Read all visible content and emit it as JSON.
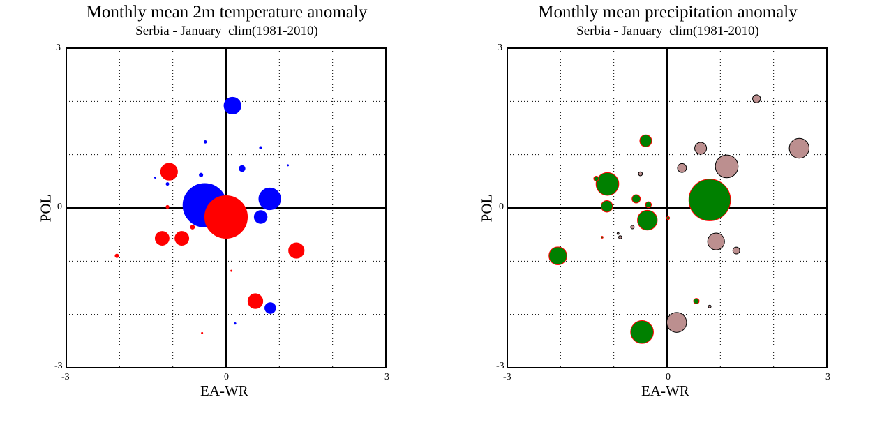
{
  "chart_data": [
    {
      "type": "scatter",
      "title": "Monthly mean 2m temperature anomaly",
      "subtitle": "Serbia - January  clim(1981-2010)",
      "xlabel": "EA-WR",
      "ylabel": "POL",
      "xlim": [
        -3,
        3
      ],
      "ylim": [
        -3,
        3
      ],
      "x_ticks": [
        "-3",
        "0",
        "3"
      ],
      "y_ticks": [
        "3",
        "0",
        "-3"
      ],
      "grid": true,
      "note": "bubble size = anomaly magnitude; blue = negative, red = positive",
      "series": [
        {
          "color": "#0000ff",
          "points": [
            {
              "x": 0.12,
              "y": 1.92,
              "size": 0.85
            },
            {
              "x": -0.4,
              "y": 0.05,
              "size": 2.2
            },
            {
              "x": 0.82,
              "y": 0.17,
              "size": 1.1
            },
            {
              "x": 0.65,
              "y": -0.17,
              "size": 0.65
            },
            {
              "x": 0.83,
              "y": -1.88,
              "size": 0.55
            },
            {
              "x": 0.3,
              "y": 0.74,
              "size": 0.3
            },
            {
              "x": -0.47,
              "y": 0.62,
              "size": 0.18
            },
            {
              "x": -0.39,
              "y": 1.24,
              "size": 0.13
            },
            {
              "x": 0.65,
              "y": 1.13,
              "size": 0.12
            },
            {
              "x": -1.1,
              "y": 0.45,
              "size": 0.14
            },
            {
              "x": 0.17,
              "y": -2.17,
              "size": 0.08
            },
            {
              "x": 1.16,
              "y": 0.8,
              "size": 0.05
            },
            {
              "x": -1.33,
              "y": 0.57,
              "size": 0.06
            },
            {
              "x": 0.72,
              "y": 0.15,
              "size": 0.08
            }
          ]
        },
        {
          "color": "#ff0000",
          "points": [
            {
              "x": 0.0,
              "y": -0.17,
              "size": 2.15
            },
            {
              "x": -1.07,
              "y": 0.68,
              "size": 0.85
            },
            {
              "x": -1.2,
              "y": -0.57,
              "size": 0.7
            },
            {
              "x": -0.83,
              "y": -0.57,
              "size": 0.7
            },
            {
              "x": 1.32,
              "y": -0.8,
              "size": 0.78
            },
            {
              "x": 0.55,
              "y": -1.75,
              "size": 0.75
            },
            {
              "x": -0.63,
              "y": -0.36,
              "size": 0.2
            },
            {
              "x": -2.05,
              "y": -0.9,
              "size": 0.18
            },
            {
              "x": -1.1,
              "y": 0.02,
              "size": 0.15
            },
            {
              "x": 0.1,
              "y": -1.18,
              "size": 0.04
            },
            {
              "x": -0.45,
              "y": -2.35,
              "size": 0.03
            }
          ]
        }
      ]
    },
    {
      "type": "scatter",
      "title": "Monthly mean precipitation anomaly",
      "subtitle": "Serbia - January  clim(1981-2010)",
      "xlabel": "EA-WR",
      "ylabel": "POL",
      "xlim": [
        -3,
        3
      ],
      "ylim": [
        -3,
        3
      ],
      "x_ticks": [
        "-3",
        "0",
        "3"
      ],
      "y_ticks": [
        "3",
        "0",
        "-3"
      ],
      "grid": true,
      "note": "bubble size = anomaly magnitude; green = positive, rosy brown = negative",
      "series": [
        {
          "color": "#008000",
          "stroke": "#ff0000",
          "points": [
            {
              "x": 0.8,
              "y": 0.15,
              "size": 2.1
            },
            {
              "x": -1.12,
              "y": 0.45,
              "size": 1.15
            },
            {
              "x": -0.37,
              "y": -0.23,
              "size": 1.0
            },
            {
              "x": -0.47,
              "y": -2.33,
              "size": 1.15
            },
            {
              "x": -2.05,
              "y": -0.9,
              "size": 0.9
            },
            {
              "x": -0.4,
              "y": 1.26,
              "size": 0.6
            },
            {
              "x": -1.13,
              "y": 0.03,
              "size": 0.58
            },
            {
              "x": -0.58,
              "y": 0.17,
              "size": 0.42
            },
            {
              "x": -0.35,
              "y": 0.06,
              "size": 0.3
            },
            {
              "x": 0.55,
              "y": -1.75,
              "size": 0.28
            },
            {
              "x": -1.33,
              "y": 0.55,
              "size": 0.25
            },
            {
              "x": 0.02,
              "y": -0.19,
              "size": 0.15
            },
            {
              "x": -1.22,
              "y": -0.55,
              "size": 0.1
            }
          ]
        },
        {
          "color": "#bc8f8f",
          "stroke": "#000000",
          "points": [
            {
              "x": 1.12,
              "y": 0.78,
              "size": 1.15
            },
            {
              "x": 2.48,
              "y": 1.12,
              "size": 1.0
            },
            {
              "x": 0.18,
              "y": -2.15,
              "size": 1.0
            },
            {
              "x": 0.92,
              "y": -0.63,
              "size": 0.85
            },
            {
              "x": 0.63,
              "y": 1.12,
              "size": 0.6
            },
            {
              "x": 0.28,
              "y": 0.75,
              "size": 0.45
            },
            {
              "x": 1.68,
              "y": 2.05,
              "size": 0.4
            },
            {
              "x": 1.3,
              "y": -0.8,
              "size": 0.35
            },
            {
              "x": -0.5,
              "y": 0.64,
              "size": 0.2
            },
            {
              "x": -0.65,
              "y": -0.36,
              "size": 0.18
            },
            {
              "x": -0.88,
              "y": -0.55,
              "size": 0.16
            },
            {
              "x": 0.8,
              "y": -1.85,
              "size": 0.14
            },
            {
              "x": -0.92,
              "y": -0.48,
              "size": 0.1
            }
          ]
        }
      ]
    }
  ]
}
